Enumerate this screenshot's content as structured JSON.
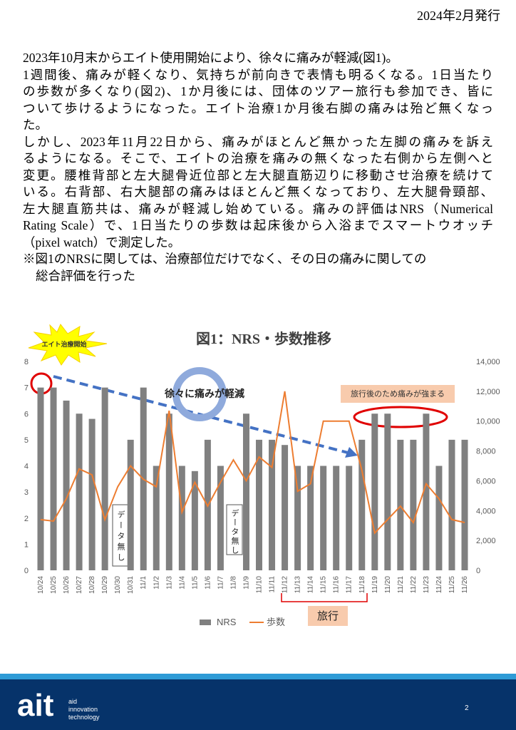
{
  "header": {
    "date": "2024年2月発行"
  },
  "body": {
    "lines": [
      "2023年10月末からエイト使用開始により、徐々に痛みが軽減(図1)。",
      "1週間後、痛みが軽くなり、気持ちが前向きで表情も明るくなる。1日当たり",
      "の歩数が多くなり(図2)、1か月後には、団体のツアー旅行も参加でき、皆に",
      "ついて歩けるようになった。エイト治療1か月後右脚の痛みは殆ど無くなっ",
      "た。",
      "しかし、2023年11月22日から、痛みがほとんど無かった左脚の痛みを訴え",
      "るようになる。そこで、エイトの治療を痛みの無くなった右側から左側へと",
      "変更。腰椎背部と左大腿骨近位部と左大腿直筋辺りに移動させ治療を続けて",
      "いる。右背部、右大腿部の痛みはほとんど無くなっており、左大腿骨頸部、",
      "左大腿直筋共は、痛みが軽減し始めている。痛みの評価はNRS（Numerical",
      "Rating Scale）で、1日当たりの歩数は起床後から入浴までスマートウオッチ",
      "（pixel watch）で測定した。",
      "※図1のNRSに関しては、治療部位だけでなく、その日の痛みに関しての",
      "総合評価を行った"
    ]
  },
  "chart_data": {
    "type": "bar",
    "title": "図1：NRS・歩数推移",
    "categories": [
      "10/24",
      "10/25",
      "10/26",
      "10/27",
      "10/28",
      "10/29",
      "10/30",
      "10/31",
      "11/1",
      "11/2",
      "11/3",
      "11/4",
      "11/5",
      "11/6",
      "11/7",
      "11/8",
      "11/9",
      "11/10",
      "11/11",
      "11/12",
      "11/13",
      "11/14",
      "11/15",
      "11/16",
      "11/17",
      "11/18",
      "11/19",
      "11/20",
      "11/21",
      "11/22",
      "11/23",
      "11/24",
      "11/25",
      "11/26"
    ],
    "series": [
      {
        "name": "NRS",
        "type": "bar",
        "color": "#808080",
        "values": [
          7,
          7,
          6.5,
          6,
          5.8,
          7,
          null,
          5,
          7,
          4,
          6,
          4,
          3.8,
          5,
          4,
          null,
          6,
          5,
          5,
          4.8,
          4,
          4,
          4,
          4,
          4,
          5,
          6,
          6,
          5,
          5,
          6,
          4,
          5,
          5
        ]
      },
      {
        "name": "歩数",
        "type": "line",
        "axis": "y2",
        "color": "#ed7d31",
        "values": [
          3400,
          3300,
          4800,
          6800,
          6400,
          3400,
          5600,
          7000,
          6100,
          5600,
          10700,
          3900,
          5900,
          4300,
          5900,
          7400,
          6000,
          7600,
          6900,
          12000,
          5300,
          5800,
          10000,
          10000,
          10000,
          6700,
          2500,
          3400,
          4300,
          3200,
          5800,
          4800,
          3400,
          3200
        ]
      }
    ],
    "ylim": [
      0,
      8
    ],
    "yticks": [
      0,
      1,
      2,
      3,
      4,
      5,
      6,
      7,
      8
    ],
    "y2lim": [
      0,
      14000
    ],
    "y2ticks": [
      0,
      {
        "value": 2000,
        "label": "2,000"
      },
      {
        "value": 4000,
        "label": "4,000"
      },
      {
        "value": 6000,
        "label": "6,000"
      },
      {
        "value": 8000,
        "label": "8,000"
      },
      {
        "value": 10000,
        "label": "10,000"
      },
      {
        "value": 12000,
        "label": "12,000"
      },
      {
        "value": 14000,
        "label": "14,000"
      }
    ],
    "grid": false,
    "annotations": {
      "start": "エイト治療開始",
      "trend": "徐々に痛みが軽減",
      "after_trip": "旅行後のため痛みが強まる",
      "no_data": [
        "データ無し",
        "データ無し"
      ],
      "trip": "旅行"
    }
  },
  "footer": {
    "logo": "ait",
    "tagline": [
      "aid",
      "innovation",
      "technology"
    ],
    "page": "2"
  }
}
